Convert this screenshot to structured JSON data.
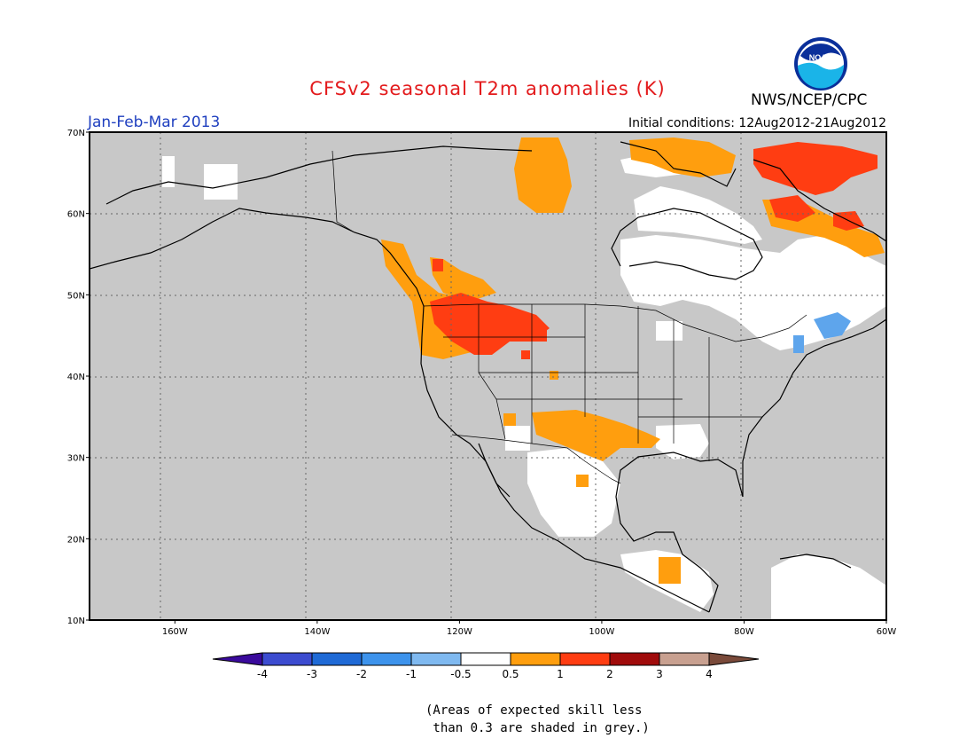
{
  "header": {
    "title": "CFSv2 seasonal T2m anomalies (K)",
    "agency": "NWS/NCEP/CPC",
    "logo_text": "NOAA",
    "season": "Jan-Feb-Mar 2013",
    "initial_conditions": "Initial conditions: 12Aug2012-21Aug2012"
  },
  "map": {
    "lat_range": [
      10,
      70
    ],
    "lon_range": [
      -172,
      -60
    ],
    "lat_ticks": [
      "10N",
      "20N",
      "30N",
      "40N",
      "50N",
      "60N",
      "70N"
    ],
    "lon_ticks": [
      "160W",
      "140W",
      "120W",
      "100W",
      "80W",
      "60W"
    ],
    "grid": "dotted",
    "background_color": "#c8c8c8",
    "coastline_color": "#000000"
  },
  "colorbar": {
    "labels": [
      "-4",
      "-3",
      "-2",
      "-1",
      "-0.5",
      "0.5",
      "1",
      "2",
      "3",
      "4"
    ],
    "colors": [
      "#3a0a9c",
      "#3c4cd0",
      "#1f6ad6",
      "#3d93ec",
      "#7fb9f0",
      "#ffffff",
      "#ff9e0e",
      "#ff3d12",
      "#a00b0b",
      "#c8a090",
      "#7a4a3a"
    ]
  },
  "footnote": [
    "(Areas of expected skill less",
    " than 0.3 are shaded in grey.)"
  ]
}
